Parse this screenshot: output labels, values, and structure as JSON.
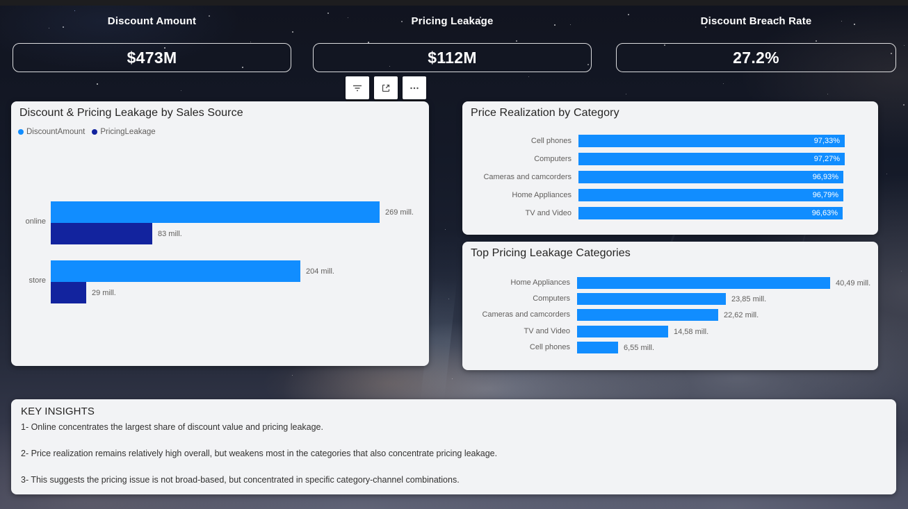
{
  "kpi_cards": [
    {
      "title": "Discount Amount",
      "value": "$473M"
    },
    {
      "title": "Pricing Leakage",
      "value": "$112M"
    },
    {
      "title": "Discount Breach Rate",
      "value": "27.2%"
    }
  ],
  "toolbar": {
    "icons": [
      {
        "name": "filter-icon"
      },
      {
        "name": "focus-mode-icon"
      },
      {
        "name": "more-options-icon",
        "glyph": "..."
      }
    ]
  },
  "colors": {
    "bar_light_blue": "#118DFF",
    "bar_dark_blue": "#12239E",
    "card_background": "#F2F3F5",
    "title_text": "#252423",
    "label_text": "#605E5C",
    "kpi_text": "#FFFFFF"
  },
  "chart_data": [
    {
      "type": "bar",
      "orientation": "horizontal",
      "title": "Discount & Pricing Leakage by Sales Source",
      "legend_position": "top-left",
      "grid": false,
      "categories": [
        "online",
        "store"
      ],
      "legend": [
        {
          "name": "DiscountAmount",
          "color": "#118DFF"
        },
        {
          "name": "PricingLeakage",
          "color": "#12239E"
        }
      ],
      "series": [
        {
          "name": "DiscountAmount",
          "color": "#118DFF",
          "values": [
            269,
            204
          ],
          "labels": [
            "269 mill.",
            "204 mill."
          ]
        },
        {
          "name": "PricingLeakage",
          "color": "#12239E",
          "values": [
            83,
            29
          ],
          "labels": [
            "83 mill.",
            "29 mill."
          ]
        }
      ],
      "unit": "mill.",
      "xmax": 269
    },
    {
      "type": "bar",
      "orientation": "horizontal",
      "title": "Price Realization by Category",
      "grid": false,
      "bar_color": "#118DFF",
      "value_label_position": "inside",
      "categories": [
        "Cell phones",
        "Computers",
        "Cameras and camcorders",
        "Home Appliances",
        "TV and Video"
      ],
      "values": [
        97.33,
        97.27,
        96.93,
        96.79,
        96.63
      ],
      "labels": [
        "97,33%",
        "97,27%",
        "96,93%",
        "96,79%",
        "96,63%"
      ],
      "unit": "%",
      "xmax": 97.33
    },
    {
      "type": "bar",
      "orientation": "horizontal",
      "title": "Top Pricing Leakage Categories",
      "grid": false,
      "bar_color": "#118DFF",
      "value_label_position": "outside",
      "categories": [
        "Home Appliances",
        "Computers",
        "Cameras and camcorders",
        "TV and Video",
        "Cell phones"
      ],
      "values": [
        40.49,
        23.85,
        22.62,
        14.58,
        6.55
      ],
      "labels": [
        "40,49 mill.",
        "23,85 mill.",
        "22,62 mill.",
        "14,58 mill.",
        "6,55 mill."
      ],
      "unit": "mill.",
      "xmax": 40.49
    }
  ],
  "insights": {
    "title": "KEY INSIGHTS",
    "items": [
      "1- Online concentrates the largest share of discount value and pricing leakage.",
      "2- Price realization remains relatively high overall, but weakens most in the categories that also concentrate pricing leakage.",
      "3- This suggests the pricing issue is not broad-based, but concentrated in specific category-channel combinations."
    ]
  }
}
